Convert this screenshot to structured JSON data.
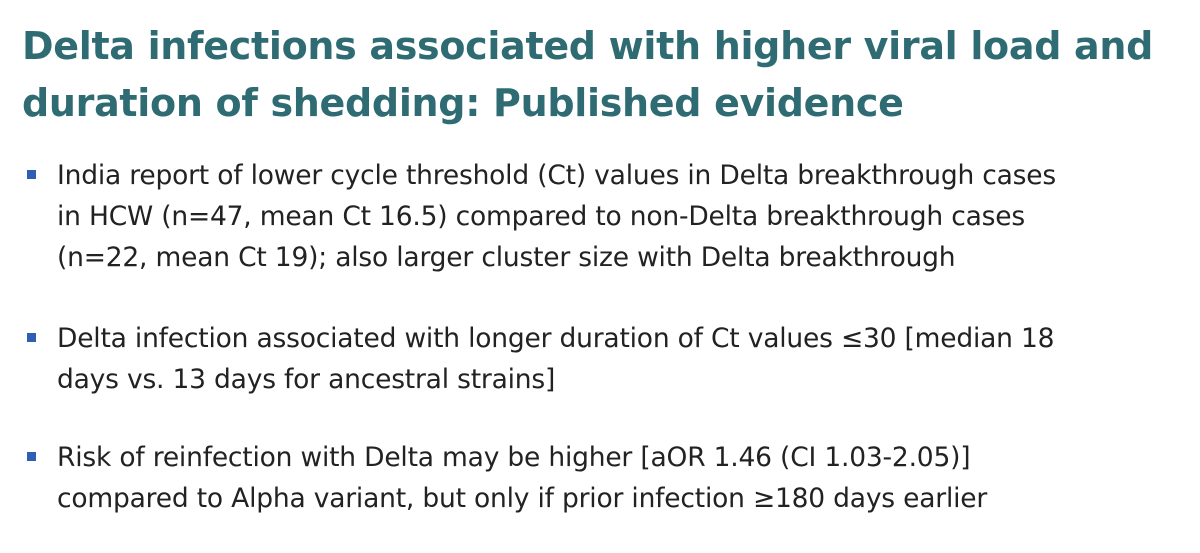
{
  "colors": {
    "title": "#2e6b72",
    "bullet_marker": "#2f5fb0",
    "text": "#222222",
    "background": "#ffffff"
  },
  "slide": {
    "title_lines": [
      "Delta infections associated with higher viral load and",
      "duration of shedding: Published evidence"
    ],
    "bullets": [
      {
        "marker_icon": "square-bullet-icon",
        "lines": [
          "India report of lower cycle threshold (Ct) values in Delta breakthrough cases",
          "in HCW (n=47, mean Ct 16.5) compared to non-Delta breakthrough cases",
          "(n=22, mean Ct 19); also larger cluster size with Delta breakthrough"
        ]
      },
      {
        "marker_icon": "square-bullet-icon",
        "lines": [
          "Delta infection associated with longer duration of Ct values ≤30 [median 18",
          "days vs. 13 days for ancestral strains]"
        ]
      },
      {
        "marker_icon": "square-bullet-icon",
        "lines": [
          "Risk of reinfection with Delta may be higher [aOR 1.46 (CI 1.03-2.05)]",
          "compared to Alpha variant, but only if prior infection ≥180 days earlier"
        ]
      }
    ]
  }
}
